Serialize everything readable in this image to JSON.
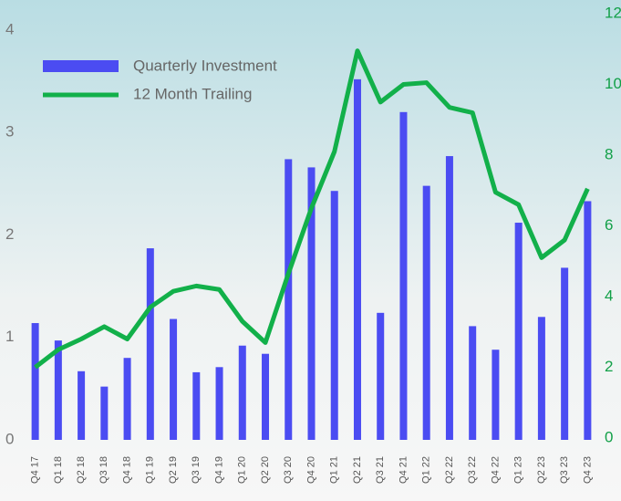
{
  "chart_data": {
    "type": "bar_line",
    "categories": [
      "Q4 17",
      "Q1 18",
      "Q2 18",
      "Q3 18",
      "Q4 18",
      "Q1 19",
      "Q2 19",
      "Q3 19",
      "Q4 19",
      "Q1 20",
      "Q2 20",
      "Q3 20",
      "Q4 20",
      "Q1 21",
      "Q2 21",
      "Q3 21",
      "Q4 21",
      "Q1 22",
      "Q2 22",
      "Q3 22",
      "Q4 22",
      "Q1 23",
      "Q2 23",
      "Q3 23",
      "Q4 23"
    ],
    "series": [
      {
        "name": "Quarterly Investment",
        "type": "bar",
        "color": "#4b4cf2",
        "values": [
          1.14,
          0.97,
          0.67,
          0.52,
          0.8,
          1.87,
          1.18,
          0.66,
          0.71,
          0.92,
          0.84,
          2.74,
          2.66,
          2.43,
          3.52,
          1.24,
          3.2,
          2.48,
          2.77,
          1.11,
          0.88,
          2.12,
          1.2,
          1.68,
          2.33
        ]
      },
      {
        "name": "12 Month Trailing",
        "type": "line",
        "axis": "y2",
        "color": "#12b04a",
        "values": [
          2.0,
          2.5,
          2.8,
          3.15,
          2.8,
          3.7,
          4.15,
          4.3,
          4.2,
          3.3,
          2.7,
          4.65,
          6.5,
          8.1,
          10.95,
          9.5,
          10.0,
          10.05,
          9.35,
          9.2,
          6.95,
          6.6,
          5.1,
          5.6,
          7.05
        ]
      }
    ],
    "ylim": [
      0,
      4
    ],
    "yticks": [
      0,
      1,
      2,
      3,
      4
    ],
    "y2lim": [
      0,
      12
    ],
    "y2ticks": [
      0,
      2,
      4,
      6,
      8,
      10,
      12
    ],
    "legend": "upper left"
  }
}
